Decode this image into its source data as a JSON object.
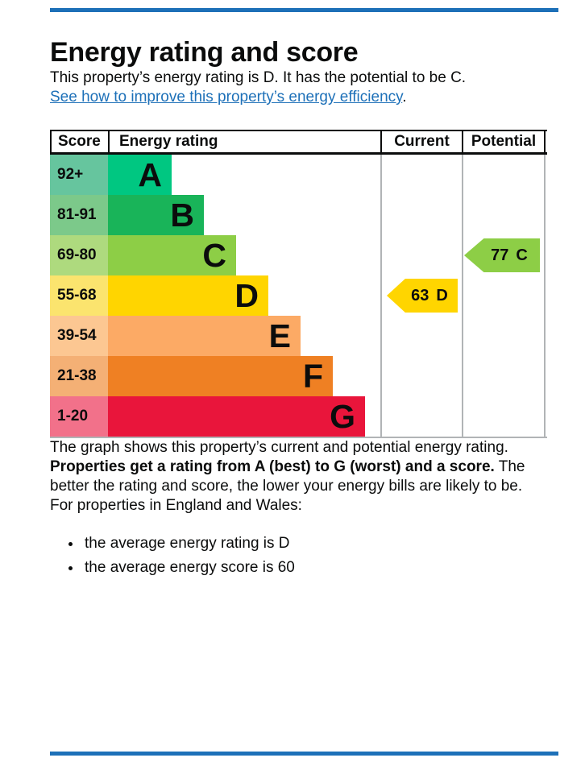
{
  "page": {
    "heading": "Energy rating and score",
    "intro": "This property’s energy rating is D. It has the potential to be C.",
    "improve_link": "See how to improve this property’s energy efficiency",
    "improve_link_suffix": ".",
    "graph_caption": "The graph shows this property’s current and potential energy rating.",
    "ratings_bold": "Properties get a rating from A (best) to G (worst) and a score.",
    "ratings_rest": " The better the rating and score, the lower your energy bills are likely to be.",
    "region_line": "For properties in England and Wales:",
    "bullets": [
      "the average energy rating is D",
      "the average energy score is 60"
    ]
  },
  "colors": {
    "accent_blue": "#1d70b8",
    "text": "#0b0c0c",
    "divider_gray": "#b1b4b6"
  },
  "chart_data": {
    "type": "bar",
    "title": "Energy rating and score",
    "columns": [
      "Score",
      "Energy rating",
      "Current",
      "Potential"
    ],
    "bands": [
      {
        "score_range": "92+",
        "letter": "A",
        "color": "#00c781",
        "tint": "#66c59e"
      },
      {
        "score_range": "81-91",
        "letter": "B",
        "color": "#19b459",
        "tint": "#7cc98a"
      },
      {
        "score_range": "69-80",
        "letter": "C",
        "color": "#8dce46",
        "tint": "#aeda7e"
      },
      {
        "score_range": "55-68",
        "letter": "D",
        "color": "#ffd500",
        "tint": "#fbe46e"
      },
      {
        "score_range": "39-54",
        "letter": "E",
        "color": "#fcaa65",
        "tint": "#fcc792"
      },
      {
        "score_range": "21-38",
        "letter": "F",
        "color": "#ef8023",
        "tint": "#f4b075"
      },
      {
        "score_range": "1-20",
        "letter": "G",
        "color": "#e9153b",
        "tint": "#f2718a"
      }
    ],
    "current": {
      "value": 63,
      "band": "D"
    },
    "potential": {
      "value": 77,
      "band": "C"
    }
  }
}
